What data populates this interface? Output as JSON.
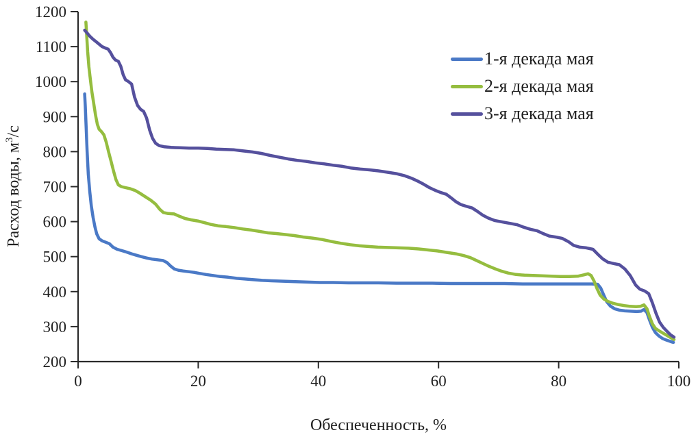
{
  "chart_data": {
    "type": "line",
    "title": "",
    "xlabel": "Обеспеченность, %",
    "ylabel": {
      "text": "Расход воды, м³/с",
      "pre": "Расход воды, м",
      "sup": "3",
      "post": "/с"
    },
    "xlim": [
      0,
      100
    ],
    "ylim": [
      200,
      1200
    ],
    "x_ticks": [
      0,
      20,
      40,
      60,
      80,
      100
    ],
    "y_ticks": [
      200,
      300,
      400,
      500,
      600,
      700,
      800,
      900,
      1000,
      1100,
      1200
    ],
    "grid": false,
    "legend_position": "upper right",
    "series": [
      {
        "name": "1-я декада мая",
        "color": "#4a79c6",
        "points": [
          [
            1.1,
            965
          ],
          [
            1.2,
            930
          ],
          [
            1.35,
            868
          ],
          [
            1.5,
            800
          ],
          [
            1.7,
            735
          ],
          [
            1.95,
            685
          ],
          [
            2.2,
            645
          ],
          [
            2.5,
            612
          ],
          [
            2.8,
            585
          ],
          [
            3.1,
            565
          ],
          [
            3.5,
            551
          ],
          [
            4.0,
            545
          ],
          [
            4.6,
            541
          ],
          [
            5.2,
            537
          ],
          [
            5.8,
            527
          ],
          [
            6.5,
            521
          ],
          [
            7.3,
            517
          ],
          [
            8.1,
            513
          ],
          [
            8.9,
            508
          ],
          [
            9.7,
            504
          ],
          [
            10.5,
            500
          ],
          [
            11.4,
            496
          ],
          [
            12.3,
            493
          ],
          [
            13.2,
            491
          ],
          [
            14.1,
            489
          ],
          [
            14.8,
            483
          ],
          [
            15.4,
            473
          ],
          [
            16.0,
            465
          ],
          [
            16.7,
            461
          ],
          [
            17.5,
            459
          ],
          [
            18.4,
            457
          ],
          [
            19.3,
            455
          ],
          [
            20.2,
            452
          ],
          [
            21.3,
            449
          ],
          [
            22.5,
            446
          ],
          [
            23.7,
            443
          ],
          [
            25.0,
            441
          ],
          [
            26.4,
            438
          ],
          [
            27.8,
            436
          ],
          [
            29.2,
            434
          ],
          [
            30.7,
            432
          ],
          [
            32.2,
            431
          ],
          [
            33.8,
            430
          ],
          [
            35.4,
            429
          ],
          [
            37.0,
            428
          ],
          [
            38.6,
            427
          ],
          [
            40.3,
            426
          ],
          [
            42.5,
            426
          ],
          [
            45.0,
            425
          ],
          [
            47.5,
            425
          ],
          [
            50.0,
            425
          ],
          [
            53.0,
            424
          ],
          [
            56.0,
            424
          ],
          [
            59.0,
            424
          ],
          [
            62.0,
            423
          ],
          [
            65.0,
            423
          ],
          [
            68.0,
            423
          ],
          [
            71.0,
            423
          ],
          [
            74.0,
            422
          ],
          [
            77.0,
            422
          ],
          [
            80.0,
            422
          ],
          [
            83.0,
            422
          ],
          [
            85.5,
            422
          ],
          [
            86.5,
            421
          ],
          [
            87.0,
            410
          ],
          [
            87.5,
            390
          ],
          [
            88.0,
            371
          ],
          [
            88.6,
            359
          ],
          [
            89.3,
            351
          ],
          [
            90.1,
            347
          ],
          [
            91.0,
            345
          ],
          [
            92.0,
            344
          ],
          [
            93.0,
            343
          ],
          [
            93.7,
            344
          ],
          [
            94.2,
            349
          ],
          [
            94.7,
            340
          ],
          [
            95.1,
            320
          ],
          [
            95.6,
            298
          ],
          [
            96.1,
            283
          ],
          [
            96.7,
            273
          ],
          [
            97.3,
            266
          ],
          [
            98.0,
            261
          ],
          [
            98.7,
            257
          ],
          [
            99.1,
            255
          ]
        ]
      },
      {
        "name": "2-я декада мая",
        "color": "#95bd3f",
        "points": [
          [
            1.3,
            1170
          ],
          [
            1.45,
            1128
          ],
          [
            1.6,
            1085
          ],
          [
            1.8,
            1042
          ],
          [
            2.05,
            1005
          ],
          [
            2.3,
            970
          ],
          [
            2.6,
            938
          ],
          [
            2.9,
            905
          ],
          [
            3.2,
            878
          ],
          [
            3.5,
            864
          ],
          [
            3.9,
            857
          ],
          [
            4.3,
            848
          ],
          [
            4.7,
            826
          ],
          [
            5.1,
            798
          ],
          [
            5.5,
            772
          ],
          [
            5.9,
            745
          ],
          [
            6.3,
            720
          ],
          [
            6.7,
            705
          ],
          [
            7.2,
            700
          ],
          [
            7.9,
            697
          ],
          [
            8.7,
            694
          ],
          [
            9.5,
            689
          ],
          [
            10.3,
            681
          ],
          [
            11.2,
            671
          ],
          [
            12.1,
            661
          ],
          [
            12.9,
            650
          ],
          [
            13.6,
            635
          ],
          [
            14.2,
            626
          ],
          [
            15.0,
            623
          ],
          [
            16.0,
            622
          ],
          [
            16.9,
            615
          ],
          [
            17.8,
            609
          ],
          [
            18.8,
            605
          ],
          [
            19.9,
            602
          ],
          [
            21.0,
            597
          ],
          [
            22.1,
            592
          ],
          [
            23.3,
            588
          ],
          [
            24.6,
            586
          ],
          [
            26.0,
            583
          ],
          [
            27.4,
            579
          ],
          [
            28.8,
            576
          ],
          [
            30.2,
            572
          ],
          [
            31.6,
            568
          ],
          [
            33.0,
            566
          ],
          [
            34.5,
            563
          ],
          [
            36.0,
            560
          ],
          [
            37.5,
            556
          ],
          [
            39.0,
            553
          ],
          [
            40.6,
            549
          ],
          [
            42.2,
            543
          ],
          [
            43.8,
            538
          ],
          [
            45.3,
            534
          ],
          [
            46.8,
            531
          ],
          [
            48.3,
            529
          ],
          [
            49.9,
            527
          ],
          [
            51.6,
            526
          ],
          [
            53.3,
            525
          ],
          [
            55.0,
            524
          ],
          [
            56.7,
            522
          ],
          [
            58.3,
            519
          ],
          [
            59.9,
            516
          ],
          [
            61.4,
            512
          ],
          [
            62.9,
            508
          ],
          [
            64.2,
            503
          ],
          [
            65.3,
            497
          ],
          [
            66.3,
            489
          ],
          [
            67.3,
            481
          ],
          [
            68.3,
            473
          ],
          [
            69.3,
            466
          ],
          [
            70.4,
            459
          ],
          [
            71.6,
            453
          ],
          [
            72.9,
            449
          ],
          [
            74.3,
            447
          ],
          [
            75.8,
            446
          ],
          [
            77.3,
            445
          ],
          [
            78.8,
            444
          ],
          [
            80.3,
            443
          ],
          [
            81.8,
            443
          ],
          [
            83.2,
            444
          ],
          [
            84.2,
            448
          ],
          [
            84.9,
            451
          ],
          [
            85.4,
            446
          ],
          [
            85.9,
            430
          ],
          [
            86.4,
            408
          ],
          [
            86.9,
            390
          ],
          [
            87.5,
            379
          ],
          [
            88.2,
            372
          ],
          [
            89.0,
            367
          ],
          [
            89.9,
            363
          ],
          [
            90.9,
            360
          ],
          [
            91.9,
            358
          ],
          [
            92.9,
            357
          ],
          [
            93.6,
            358
          ],
          [
            94.2,
            362
          ],
          [
            94.7,
            351
          ],
          [
            95.1,
            330
          ],
          [
            95.6,
            308
          ],
          [
            96.1,
            295
          ],
          [
            96.7,
            288
          ],
          [
            97.3,
            282
          ],
          [
            98.0,
            275
          ],
          [
            98.7,
            268
          ],
          [
            99.2,
            263
          ]
        ]
      },
      {
        "name": "3-я декада мая",
        "color": "#55509d",
        "points": [
          [
            1.1,
            1147
          ],
          [
            1.5,
            1139
          ],
          [
            2.0,
            1129
          ],
          [
            2.5,
            1121
          ],
          [
            3.0,
            1114
          ],
          [
            3.5,
            1107
          ],
          [
            4.0,
            1100
          ],
          [
            4.5,
            1096
          ],
          [
            5.0,
            1093
          ],
          [
            5.4,
            1083
          ],
          [
            5.8,
            1070
          ],
          [
            6.2,
            1062
          ],
          [
            6.7,
            1058
          ],
          [
            7.1,
            1044
          ],
          [
            7.5,
            1020
          ],
          [
            7.9,
            1005
          ],
          [
            8.4,
            1000
          ],
          [
            8.9,
            993
          ],
          [
            9.4,
            956
          ],
          [
            9.9,
            932
          ],
          [
            10.4,
            921
          ],
          [
            10.9,
            915
          ],
          [
            11.4,
            896
          ],
          [
            11.9,
            862
          ],
          [
            12.4,
            838
          ],
          [
            12.9,
            824
          ],
          [
            13.5,
            817
          ],
          [
            14.3,
            814
          ],
          [
            15.5,
            812
          ],
          [
            17.0,
            811
          ],
          [
            18.5,
            810
          ],
          [
            20.0,
            810
          ],
          [
            21.5,
            809
          ],
          [
            23.0,
            807
          ],
          [
            24.5,
            806
          ],
          [
            26.0,
            805
          ],
          [
            27.5,
            802
          ],
          [
            29.0,
            799
          ],
          [
            30.5,
            795
          ],
          [
            32.0,
            789
          ],
          [
            33.5,
            784
          ],
          [
            35.0,
            779
          ],
          [
            36.5,
            775
          ],
          [
            38.0,
            772
          ],
          [
            39.5,
            768
          ],
          [
            41.0,
            765
          ],
          [
            42.5,
            761
          ],
          [
            44.0,
            758
          ],
          [
            45.5,
            753
          ],
          [
            47.0,
            750
          ],
          [
            48.5,
            748
          ],
          [
            50.0,
            745
          ],
          [
            51.5,
            741
          ],
          [
            53.0,
            737
          ],
          [
            54.4,
            731
          ],
          [
            55.5,
            724
          ],
          [
            56.5,
            716
          ],
          [
            57.5,
            707
          ],
          [
            58.5,
            697
          ],
          [
            59.5,
            689
          ],
          [
            60.4,
            683
          ],
          [
            61.3,
            678
          ],
          [
            62.1,
            668
          ],
          [
            62.9,
            657
          ],
          [
            63.7,
            649
          ],
          [
            64.6,
            644
          ],
          [
            65.6,
            639
          ],
          [
            66.5,
            629
          ],
          [
            67.4,
            618
          ],
          [
            68.3,
            610
          ],
          [
            69.4,
            603
          ],
          [
            70.6,
            599
          ],
          [
            71.9,
            595
          ],
          [
            73.1,
            591
          ],
          [
            74.2,
            584
          ],
          [
            75.3,
            578
          ],
          [
            76.4,
            574
          ],
          [
            77.4,
            566
          ],
          [
            78.4,
            559
          ],
          [
            79.5,
            556
          ],
          [
            80.6,
            552
          ],
          [
            81.6,
            543
          ],
          [
            82.5,
            532
          ],
          [
            83.5,
            527
          ],
          [
            84.6,
            525
          ],
          [
            85.7,
            521
          ],
          [
            86.5,
            507
          ],
          [
            87.3,
            494
          ],
          [
            88.2,
            484
          ],
          [
            89.2,
            480
          ],
          [
            90.1,
            477
          ],
          [
            91.0,
            465
          ],
          [
            91.9,
            446
          ],
          [
            92.8,
            419
          ],
          [
            93.5,
            407
          ],
          [
            94.3,
            402
          ],
          [
            95.0,
            394
          ],
          [
            95.6,
            368
          ],
          [
            96.2,
            338
          ],
          [
            96.8,
            313
          ],
          [
            97.4,
            298
          ],
          [
            98.0,
            287
          ],
          [
            98.6,
            277
          ],
          [
            99.2,
            270
          ]
        ]
      }
    ]
  },
  "colors": {
    "axis": "#2a2a2a",
    "text": "#1f1f1f",
    "background": "#ffffff"
  }
}
